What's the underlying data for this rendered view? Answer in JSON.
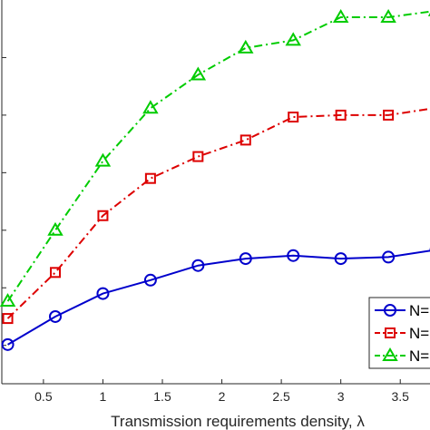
{
  "chart_data": {
    "type": "line",
    "xlabel": "Transmission requirements density, λ",
    "ylabel": "",
    "title": "",
    "x": [
      0.2,
      0.6,
      1.0,
      1.4,
      1.8,
      2.2,
      2.6,
      3.0,
      3.4,
      3.8
    ],
    "x_ticks": [
      "0.5",
      "1",
      "1.5",
      "2",
      "2.5",
      "3",
      "3.5"
    ],
    "xlim": [
      0.15,
      3.75
    ],
    "ylim": [
      0,
      100
    ],
    "grid": false,
    "legend_position": "bottom-right",
    "series": [
      {
        "name": "N=",
        "color": "#0000cc",
        "linestyle": "solid",
        "marker": "circle",
        "values": [
          10.2,
          17.5,
          23.5,
          27.0,
          30.8,
          32.6,
          33.4,
          32.6,
          33.0,
          34.9
        ]
      },
      {
        "name": "N=",
        "color": "#dd0000",
        "linestyle": "dashdot",
        "marker": "square",
        "values": [
          17.0,
          29.0,
          43.8,
          53.5,
          59.2,
          63.5,
          69.5,
          70.0,
          70.0,
          71.9
        ]
      },
      {
        "name": "N=",
        "color": "#00cc00",
        "linestyle": "dashdot",
        "marker": "triangle",
        "values": [
          21.5,
          40.0,
          58.0,
          71.8,
          80.5,
          87.5,
          89.5,
          95.5,
          95.5,
          97.2
        ]
      }
    ]
  }
}
